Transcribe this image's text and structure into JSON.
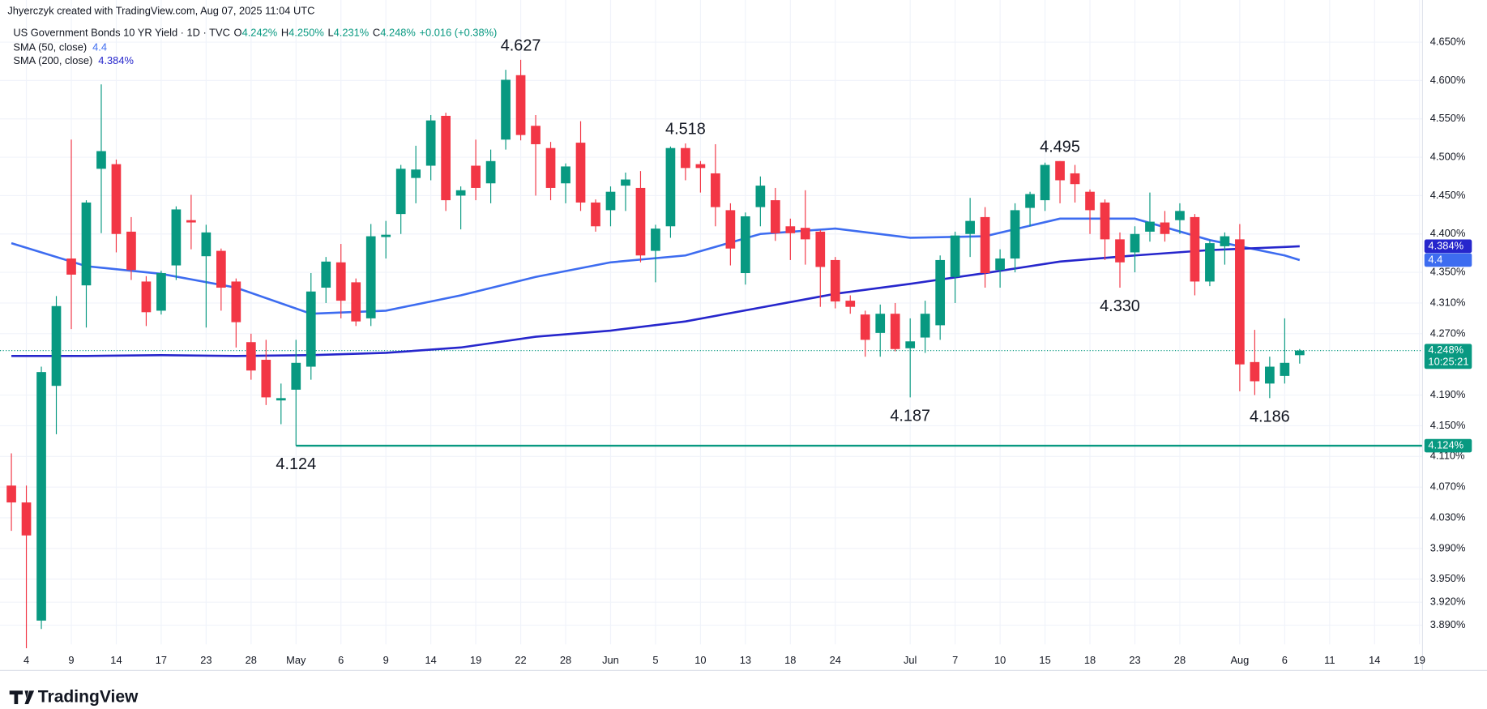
{
  "chart_data": {
    "type": "candlestick",
    "header": "Jhyerczyk created with TradingView.com, Aug 07, 2025 11:04 UTC",
    "title": "US Government Bonds 10 YR Yield · 1D · TVC",
    "last_labels": [
      {
        "key": "O",
        "label": "4.242%"
      },
      {
        "key": "H",
        "label": "4.250%"
      },
      {
        "key": "L",
        "label": "4.231%"
      },
      {
        "key": "C",
        "label": "4.248%"
      }
    ],
    "change_label": "+0.016 (+0.38%)",
    "up_color": "#089981",
    "down_color": "#f23645",
    "open": [
      4.072,
      4.05,
      3.896,
      4.202,
      4.368,
      4.333,
      4.485,
      4.491,
      4.403,
      4.338,
      4.3,
      4.359,
      4.418,
      4.371,
      4.378,
      4.338,
      4.259,
      4.236,
      4.183,
      4.197,
      4.227,
      4.33,
      4.363,
      4.337,
      4.29,
      4.396,
      4.426,
      4.473,
      4.489,
      4.554,
      4.45,
      4.489,
      4.466,
      4.523,
      4.607,
      4.541,
      4.512,
      4.466,
      4.519,
      4.441,
      4.431,
      4.463,
      4.46,
      4.378,
      4.41,
      4.512,
      4.491,
      4.479,
      4.431,
      4.349,
      4.435,
      4.444,
      4.41,
      4.408,
      4.403,
      4.366,
      4.313,
      4.295,
      4.271,
      4.296,
      4.251,
      4.265,
      4.281,
      4.344,
      4.4,
      4.422,
      4.353,
      4.368,
      4.434,
      4.444,
      4.495,
      4.479,
      4.455,
      4.441,
      4.393,
      4.376,
      4.403,
      4.415,
      4.418,
      4.422,
      4.338,
      4.384,
      4.393,
      4.233,
      4.205,
      4.215,
      4.242
    ],
    "high": [
      4.114,
      4.072,
      4.227,
      4.319,
      4.523,
      4.444,
      4.595,
      4.497,
      4.422,
      4.345,
      4.352,
      4.436,
      4.451,
      4.412,
      4.381,
      4.342,
      4.27,
      4.262,
      4.205,
      4.262,
      4.349,
      4.37,
      4.387,
      4.342,
      4.413,
      4.417,
      4.49,
      4.515,
      4.555,
      4.558,
      4.462,
      4.523,
      4.51,
      4.614,
      4.627,
      4.555,
      4.52,
      4.492,
      4.547,
      4.445,
      4.462,
      4.48,
      4.482,
      4.412,
      4.514,
      4.518,
      4.495,
      4.517,
      4.44,
      4.428,
      4.475,
      4.46,
      4.42,
      4.457,
      4.405,
      4.37,
      4.32,
      4.3,
      4.308,
      4.31,
      4.29,
      4.313,
      4.372,
      4.403,
      4.447,
      4.435,
      4.38,
      4.44,
      4.455,
      4.493,
      4.495,
      4.49,
      4.458,
      4.445,
      4.402,
      4.41,
      4.454,
      4.43,
      4.44,
      4.426,
      4.392,
      4.402,
      4.413,
      4.275,
      4.24,
      4.29,
      4.25
    ],
    "low": [
      4.013,
      3.86,
      3.885,
      4.139,
      4.276,
      4.278,
      4.401,
      4.376,
      4.34,
      4.28,
      4.295,
      4.34,
      4.38,
      4.278,
      4.3,
      4.252,
      4.21,
      4.177,
      4.152,
      4.124,
      4.21,
      4.31,
      4.29,
      4.28,
      4.28,
      4.368,
      4.4,
      4.44,
      4.47,
      4.43,
      4.406,
      4.444,
      4.44,
      4.51,
      4.522,
      4.45,
      4.444,
      4.44,
      4.43,
      4.403,
      4.41,
      4.43,
      4.363,
      4.337,
      4.395,
      4.47,
      4.454,
      4.41,
      4.359,
      4.334,
      4.41,
      4.391,
      4.366,
      4.36,
      4.305,
      4.303,
      4.296,
      4.24,
      4.24,
      4.247,
      4.187,
      4.245,
      4.262,
      4.31,
      4.37,
      4.33,
      4.33,
      4.35,
      4.41,
      4.43,
      4.44,
      4.441,
      4.4,
      4.366,
      4.33,
      4.35,
      4.39,
      4.39,
      4.4,
      4.32,
      4.332,
      4.36,
      4.195,
      4.19,
      4.186,
      4.205,
      4.231
    ],
    "close": [
      4.05,
      4.007,
      4.22,
      4.306,
      4.347,
      4.441,
      4.508,
      4.4,
      4.353,
      4.298,
      4.349,
      4.432,
      4.415,
      4.402,
      4.33,
      4.285,
      4.222,
      4.187,
      4.186,
      4.232,
      4.325,
      4.364,
      4.313,
      4.286,
      4.397,
      4.399,
      4.485,
      4.484,
      4.548,
      4.444,
      4.457,
      4.46,
      4.495,
      4.601,
      4.529,
      4.517,
      4.46,
      4.488,
      4.441,
      4.41,
      4.455,
      4.471,
      4.372,
      4.407,
      4.512,
      4.486,
      4.486,
      4.435,
      4.381,
      4.423,
      4.463,
      4.401,
      4.401,
      4.393,
      4.357,
      4.312,
      4.305,
      4.262,
      4.296,
      4.25,
      4.26,
      4.296,
      4.366,
      4.398,
      4.417,
      4.349,
      4.368,
      4.431,
      4.452,
      4.49,
      4.47,
      4.465,
      4.431,
      4.393,
      4.363,
      4.4,
      4.416,
      4.4,
      4.43,
      4.338,
      4.388,
      4.397,
      4.23,
      4.208,
      4.227,
      4.232,
      4.248
    ],
    "series": [
      {
        "name": "SMA (50, close)",
        "color": "#3d6cf0",
        "value_label": "4.4",
        "x": [
          0,
          5,
          10,
          15,
          20,
          25,
          30,
          35,
          40,
          45,
          50,
          55,
          60,
          65,
          70,
          75,
          80,
          85,
          86
        ],
        "values": [
          4.388,
          4.358,
          4.348,
          4.33,
          4.296,
          4.3,
          4.32,
          4.344,
          4.363,
          4.372,
          4.4,
          4.407,
          4.395,
          4.397,
          4.42,
          4.42,
          4.392,
          4.372,
          4.366
        ]
      },
      {
        "name": "SMA (200, close)",
        "color": "#2626cc",
        "value_label": "4.384%",
        "x": [
          0,
          5,
          10,
          15,
          20,
          25,
          30,
          35,
          40,
          45,
          50,
          55,
          60,
          65,
          70,
          75,
          80,
          85,
          86
        ],
        "values": [
          4.241,
          4.241,
          4.242,
          4.241,
          4.242,
          4.245,
          4.252,
          4.266,
          4.274,
          4.286,
          4.304,
          4.322,
          4.335,
          4.349,
          4.364,
          4.372,
          4.379,
          4.383,
          4.384
        ]
      }
    ],
    "price_line": {
      "label": "4.248%",
      "countdown": "10:25:21"
    },
    "hline": {
      "value": 4.124,
      "x": 19,
      "label": "4.124%",
      "color": "#089981"
    },
    "annotations": [
      {
        "label": "4.627",
        "value": 4.627,
        "x": 34,
        "side": "high"
      },
      {
        "label": "4.518",
        "value": 4.518,
        "x": 45,
        "side": "high"
      },
      {
        "label": "4.495",
        "value": 4.495,
        "x": 70,
        "side": "high"
      },
      {
        "label": "4.330",
        "value": 4.33,
        "x": 74,
        "side": "low"
      },
      {
        "label": "4.187",
        "value": 4.187,
        "x": 60,
        "side": "low"
      },
      {
        "label": "4.186",
        "value": 4.186,
        "x": 84,
        "side": "low"
      },
      {
        "label": "4.124",
        "value": 4.124,
        "x": 19,
        "side": "low"
      }
    ],
    "xlim": [
      -0.76,
      94.2
    ],
    "xticks": [
      {
        "value": 1,
        "label": "4"
      },
      {
        "value": 4,
        "label": "9"
      },
      {
        "value": 7,
        "label": "14"
      },
      {
        "value": 10,
        "label": "17"
      },
      {
        "value": 13,
        "label": "23"
      },
      {
        "value": 16,
        "label": "28"
      },
      {
        "value": 19,
        "label": "May"
      },
      {
        "value": 22,
        "label": "6"
      },
      {
        "value": 25,
        "label": "9"
      },
      {
        "value": 28,
        "label": "14"
      },
      {
        "value": 31,
        "label": "19"
      },
      {
        "value": 34,
        "label": "22"
      },
      {
        "value": 37,
        "label": "28"
      },
      {
        "value": 40,
        "label": "Jun"
      },
      {
        "value": 43,
        "label": "5"
      },
      {
        "value": 46,
        "label": "10"
      },
      {
        "value": 49,
        "label": "13"
      },
      {
        "value": 52,
        "label": "18"
      },
      {
        "value": 55,
        "label": "24"
      },
      {
        "value": 60,
        "label": "Jul"
      },
      {
        "value": 63,
        "label": "7"
      },
      {
        "value": 66,
        "label": "10"
      },
      {
        "value": 69,
        "label": "15"
      },
      {
        "value": 72,
        "label": "18"
      },
      {
        "value": 75,
        "label": "23"
      },
      {
        "value": 78,
        "label": "28"
      },
      {
        "value": 82,
        "label": "Aug"
      },
      {
        "value": 85,
        "label": "6"
      },
      {
        "value": 88,
        "label": "11"
      },
      {
        "value": 91,
        "label": "14"
      },
      {
        "value": 94,
        "label": "19"
      }
    ],
    "ylim": [
      3.865,
      4.705
    ],
    "yticks": [
      {
        "value": 4.65,
        "label": "4.650%"
      },
      {
        "value": 4.6,
        "label": "4.600%"
      },
      {
        "value": 4.55,
        "label": "4.550%"
      },
      {
        "value": 4.5,
        "label": "4.500%"
      },
      {
        "value": 4.45,
        "label": "4.450%"
      },
      {
        "value": 4.4,
        "label": "4.400%"
      },
      {
        "value": 4.35,
        "label": "4.350%"
      },
      {
        "value": 4.31,
        "label": "4.310%"
      },
      {
        "value": 4.27,
        "label": "4.270%"
      },
      {
        "value": 4.19,
        "label": "4.190%"
      },
      {
        "value": 4.15,
        "label": "4.150%"
      },
      {
        "value": 4.11,
        "label": "4.110%"
      },
      {
        "value": 4.07,
        "label": "4.070%"
      },
      {
        "value": 4.03,
        "label": "4.030%"
      },
      {
        "value": 3.99,
        "label": "3.990%"
      },
      {
        "value": 3.95,
        "label": "3.950%"
      },
      {
        "value": 3.92,
        "label": "3.920%"
      },
      {
        "value": 3.89,
        "label": "3.890%"
      }
    ],
    "grid": true,
    "footer": "TradingView"
  }
}
